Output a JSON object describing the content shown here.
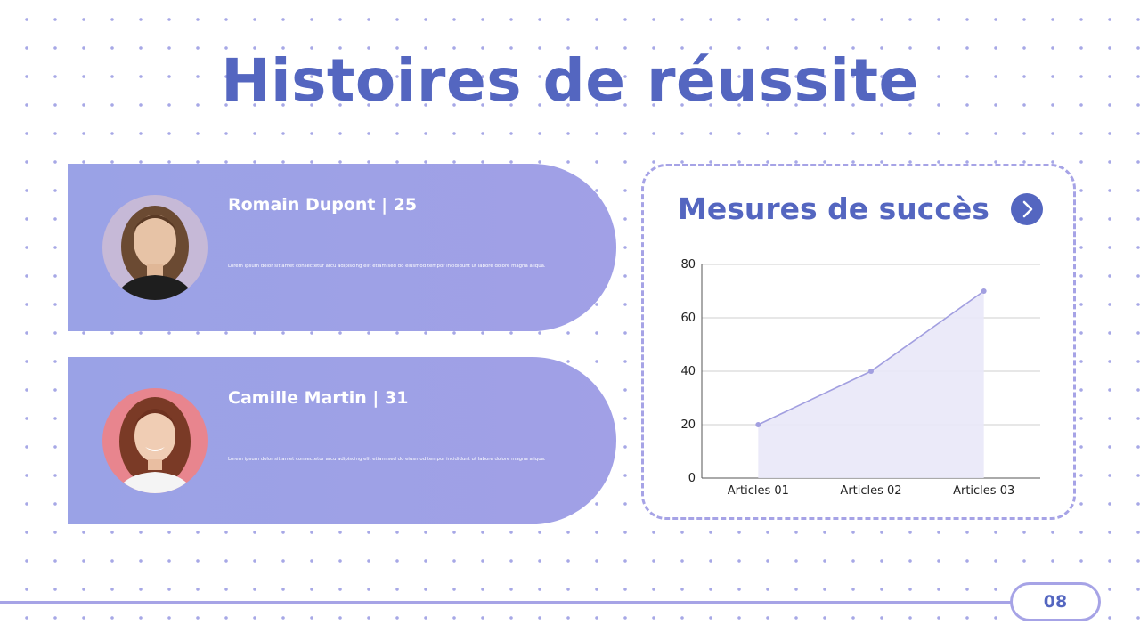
{
  "slide": {
    "title": "Histoires de réussite",
    "page_number": "08"
  },
  "profiles": [
    {
      "name_line": "Romain Dupont | 25",
      "text": "Lorem ipsum dolor sit amet consectetur arcu adipiscing elit etiam sed do eiusmod tempor incididunt ut labore dolore magna aliqua.",
      "avatar_bg": "#c6b9d7"
    },
    {
      "name_line": "Camille Martin | 31",
      "text": "Lorem ipsum dolor sit amet consectetur arcu adipiscing elit etiam sed do eiusmod tempor incididunt ut labore dolore magna aliqua.",
      "avatar_bg": "#e8858e"
    }
  ],
  "metrics": {
    "title": "Mesures de succès",
    "next_icon": "chevron-right-icon"
  },
  "colors": {
    "accent": "#5466c0",
    "card": "#a1a0e6",
    "line": "#a6a3e6",
    "area_fill": "#e9e8f8",
    "series_line": "#a29fe0"
  },
  "chart_data": {
    "type": "area",
    "categories": [
      "Articles 01",
      "Articles 02",
      "Articles 03"
    ],
    "series": [
      {
        "values": [
          20,
          40,
          70
        ]
      }
    ],
    "ylim": [
      0,
      80
    ],
    "yticks": [
      0,
      20,
      40,
      60,
      80
    ],
    "grid": true
  }
}
